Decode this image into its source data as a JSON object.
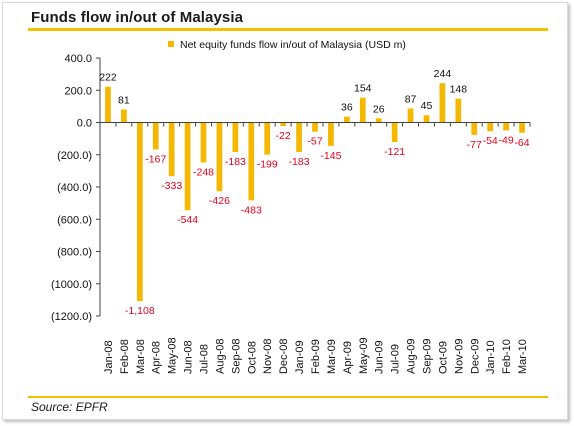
{
  "page_title": "Funds flow in/out of Malaysia",
  "source": "Source: EPFR",
  "chart_data": {
    "type": "bar",
    "title": "Funds flow in/out of Malaysia",
    "legend": "Net equity funds flow in/out of Malaysia (USD m)",
    "legend_position": "top-center",
    "bar_color": "#f5b800",
    "positive_label_color": "#111111",
    "negative_label_color": "#e8001c",
    "grid": false,
    "ylim": [
      -1200,
      400
    ],
    "yticks": [
      400,
      200,
      0,
      -200,
      -400,
      -600,
      -800,
      -1000,
      -1200
    ],
    "ytick_labels": [
      "400.0",
      "200.0",
      "0.0",
      "(200.0)",
      "(400.0)",
      "(600.0)",
      "(800.0)",
      "(1000.0)",
      "(1200.0)"
    ],
    "categories": [
      "Jan-08",
      "Feb-08",
      "Mar-08",
      "Apr-08",
      "May-08",
      "Jun-08",
      "Jul-08",
      "Aug-08",
      "Sep-08",
      "Oct-08",
      "Nov-08",
      "Dec-08",
      "Jan-09",
      "Feb-09",
      "Mar-09",
      "Apr-09",
      "May-09",
      "Jun-09",
      "Jul-09",
      "Aug-09",
      "Sep-09",
      "Oct-09",
      "Nov-09",
      "Dec-09",
      "Jan-10",
      "Feb-10",
      "Mar-10"
    ],
    "xtick_labels": [
      "Jan-08",
      "Feb-08",
      "Mar-08",
      "Apr-08",
      "May-08",
      "Jun-08",
      "Jul-08",
      "Aug-08",
      "Sep-08",
      "Oct-08",
      "Nov-08",
      "Dec-08",
      "Jan-09",
      "Feb-09",
      "Mar-09",
      "Apr-09",
      "May-09",
      "Jun-09",
      "Jul-09",
      "Aug-09",
      "Sep-09",
      "Oct-09",
      "Nov-09",
      "Dec-09",
      "Jan-10",
      "Feb-10",
      "Mar-10"
    ],
    "values": [
      222,
      81,
      -1108,
      -167,
      -333,
      -544,
      -248,
      -426,
      -183,
      -483,
      -199,
      -22,
      -183,
      -57,
      -145,
      36,
      154,
      26,
      -121,
      87,
      45,
      244,
      148,
      -77,
      -54,
      -49,
      -64
    ],
    "data_labels": [
      "222",
      "81",
      "-1,108",
      "-167",
      "-333",
      "-544",
      "-248",
      "-426",
      "-183",
      "-483",
      "-199",
      "-22",
      "-183",
      "-57",
      "-145",
      "36",
      "154",
      "26",
      "-121",
      "87",
      "45",
      "244",
      "148",
      "-77",
      "-54",
      "-49",
      "-64"
    ]
  }
}
